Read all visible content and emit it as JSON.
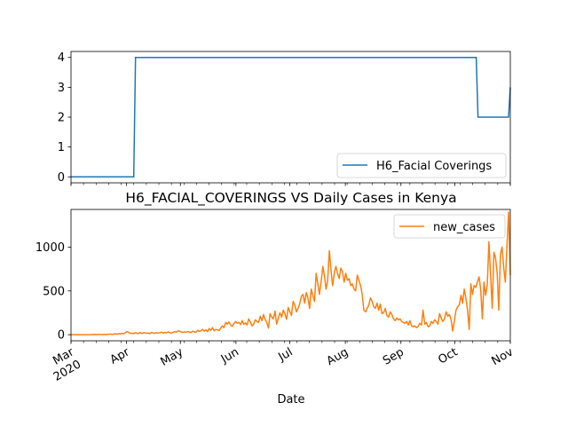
{
  "chart_data": [
    {
      "type": "line",
      "title": "",
      "xlabel": "",
      "ylabel": "",
      "ylim": [
        -0.2,
        4.2
      ],
      "yticks": [
        "0",
        "1",
        "2",
        "3",
        "4"
      ],
      "xlim": [
        "2020-03-01",
        "2020-11-01"
      ],
      "legend": {
        "position": "lower-right",
        "label": "H6_Facial Coverings"
      },
      "series": [
        {
          "name": "H6_Facial Coverings",
          "color": "#1f77b4",
          "points": [
            {
              "date": "2020-03-01",
              "value": 0
            },
            {
              "date": "2020-04-05",
              "value": 0
            },
            {
              "date": "2020-04-06",
              "value": 4
            },
            {
              "date": "2020-10-13",
              "value": 4
            },
            {
              "date": "2020-10-14",
              "value": 2
            },
            {
              "date": "2020-10-31",
              "value": 2
            },
            {
              "date": "2020-11-01",
              "value": 3
            }
          ]
        }
      ]
    },
    {
      "type": "line",
      "title": "H6_FACIAL_COVERINGS VS Daily Cases in Kenya",
      "xlabel": "Date",
      "ylabel": "",
      "ylim": [
        -70,
        1430
      ],
      "yticks": [
        "0",
        "500",
        "1000"
      ],
      "xlim": [
        "2020-03-01",
        "2020-11-01"
      ],
      "xticks": [
        "Mar\n2020",
        "Apr",
        "May",
        "Jun",
        "Jul",
        "Aug",
        "Sep",
        "Oct",
        "Nov"
      ],
      "legend": {
        "position": "top-right",
        "label": "new_cases"
      },
      "series": [
        {
          "name": "new_cases",
          "color": "#ff7f0e",
          "values": [
            0,
            0,
            0,
            0,
            0,
            0,
            0,
            0,
            0,
            0,
            0,
            0,
            1,
            2,
            1,
            3,
            0,
            4,
            2,
            1,
            3,
            0,
            5,
            4,
            8,
            3,
            6,
            10,
            5,
            12,
            8,
            15,
            11,
            20,
            35,
            25,
            14,
            18,
            10,
            22,
            16,
            13,
            24,
            14,
            20,
            22,
            15,
            18,
            12,
            25,
            19,
            16,
            22,
            18,
            23,
            28,
            19,
            26,
            21,
            30,
            22,
            18,
            25,
            35,
            28,
            45,
            40,
            30,
            25,
            33,
            28,
            36,
            30,
            24,
            40,
            32,
            28,
            50,
            38,
            45,
            60,
            40,
            55,
            35,
            70,
            50,
            80,
            45,
            60,
            55,
            48,
            75,
            100,
            80,
            140,
            120,
            145,
            110,
            95,
            125,
            150,
            130,
            140,
            115,
            160,
            120,
            135,
            110,
            180,
            145,
            100,
            120,
            170,
            150,
            140,
            210,
            160,
            230,
            170,
            140,
            75,
            240,
            200,
            180,
            270,
            120,
            190,
            250,
            200,
            280,
            240,
            175,
            310,
            260,
            220,
            380,
            340,
            260,
            300,
            350,
            440,
            460,
            360,
            480,
            420,
            300,
            520,
            450,
            380,
            700,
            580,
            460,
            600,
            780,
            680,
            520,
            620,
            960,
            740,
            560,
            700,
            780,
            700,
            640,
            760,
            720,
            600,
            700,
            620,
            640,
            560,
            580,
            520,
            500,
            680,
            620,
            560,
            460,
            280,
            260,
            300,
            340,
            420,
            380,
            320,
            300,
            360,
            280,
            350,
            240,
            250,
            300,
            220,
            200,
            260,
            230,
            180,
            160,
            190,
            170,
            180,
            150,
            140,
            130,
            150,
            110,
            160,
            100,
            90,
            100,
            80,
            95,
            130,
            110,
            280,
            120,
            140,
            90,
            100,
            150,
            130,
            170,
            150,
            120,
            240,
            190,
            150,
            180,
            260,
            210,
            230,
            170,
            40,
            160,
            280,
            320,
            340,
            450,
            360,
            520,
            420,
            280,
            60,
            580,
            460,
            560,
            540,
            600,
            660,
            520,
            180,
            600,
            450,
            560,
            1060,
            680,
            300,
            940,
            880,
            700,
            280,
            920,
            1000,
            760,
            600,
            1030,
            1400,
            680
          ]
        }
      ]
    }
  ]
}
